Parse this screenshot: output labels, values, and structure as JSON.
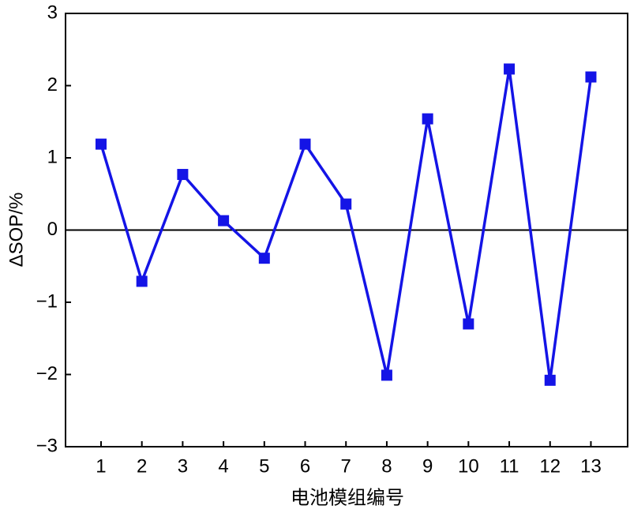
{
  "chart_data": {
    "type": "line",
    "x_label": "电池模组编号",
    "y_label": "ΔSOP/%",
    "x": [
      1,
      2,
      3,
      4,
      5,
      6,
      7,
      8,
      9,
      10,
      11,
      12,
      13
    ],
    "series": [
      {
        "name": "ΔSOP",
        "color": "#1414e6",
        "values": [
          1.19,
          -0.71,
          0.77,
          0.13,
          -0.39,
          1.19,
          0.36,
          -2.01,
          1.54,
          -1.3,
          2.23,
          -2.08,
          2.12
        ]
      }
    ],
    "xlim": [
      0.13,
      13.9
    ],
    "xticks": [
      1,
      2,
      3,
      4,
      5,
      6,
      7,
      8,
      9,
      10,
      11,
      12,
      13
    ],
    "ylim": [
      -3,
      3
    ],
    "yticks": [
      {
        "value": -3,
        "label": "−3"
      },
      {
        "value": -2,
        "label": "−2"
      },
      {
        "value": -1,
        "label": "−1"
      },
      0,
      1,
      2,
      3
    ],
    "reference_line": 0
  }
}
